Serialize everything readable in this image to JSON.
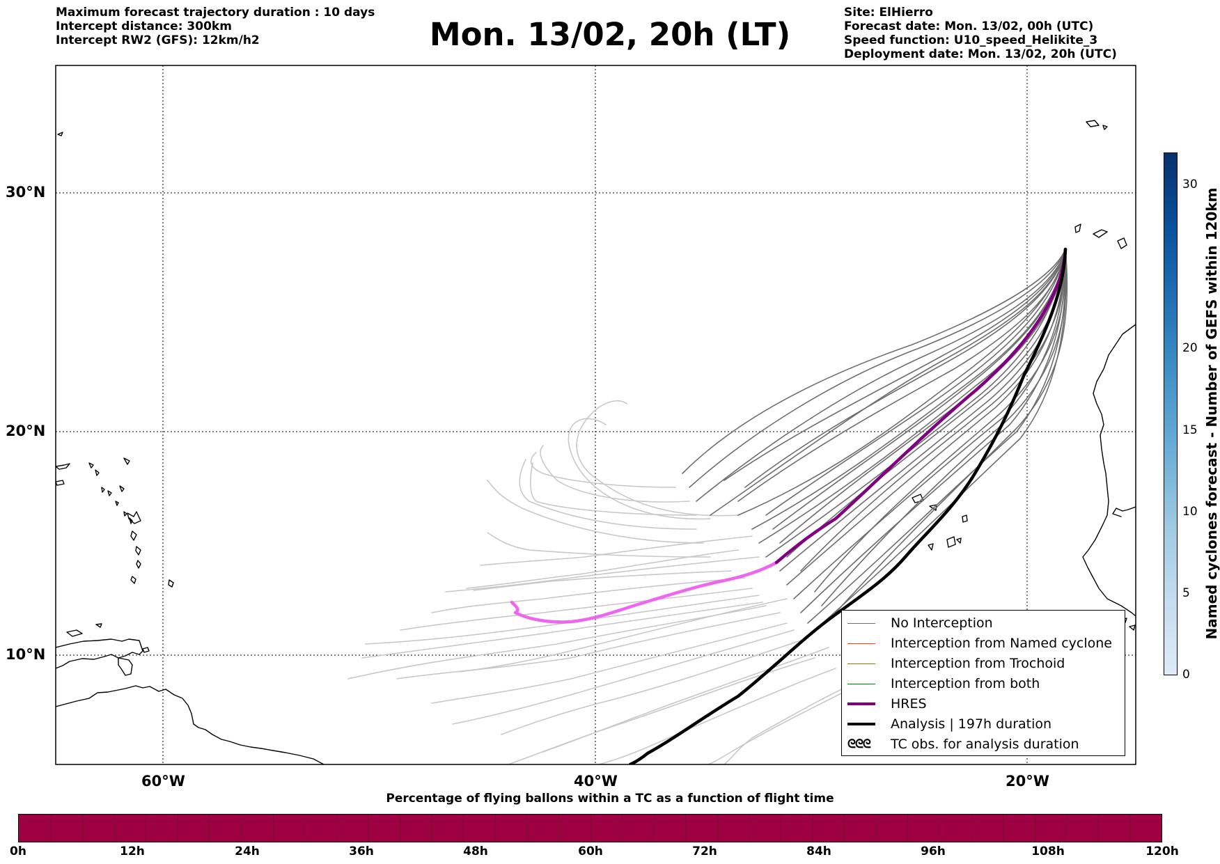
{
  "header_left": {
    "line1": "Maximum forecast trajectory duration : 10 days",
    "line2": "Intercept distance: 300km",
    "line3": "Intercept RW2 (GFS):  12km/h2"
  },
  "title": "Mon. 13/02, 20h (LT)",
  "header_right": {
    "site": "Site: ElHierro",
    "forecast_date": "Forecast date: Mon. 13/02, 00h (UTC)",
    "speed_function": "Speed function: U10_speed_Helikite_3",
    "deployment_date": "Deployment date: Mon. 13/02, 20h (UTC)"
  },
  "map": {
    "lat_labels": [
      "30°N",
      "20°N",
      "10°N"
    ],
    "lon_labels": [
      "60°W",
      "40°W",
      "20°W"
    ],
    "colors": {
      "no_interception": "#6e6e6e",
      "ensemble_faded": "#c8c8c8",
      "named_cyclone": "#ff4500",
      "trochoid": "#808000",
      "both": "#008000",
      "hres": "#800080",
      "hres_faded": "#ee66ee",
      "analysis": "#000000"
    }
  },
  "legend": {
    "items": [
      {
        "label": "No Interception",
        "style": "gray-thin"
      },
      {
        "label": "Interception from Named cyclone",
        "style": "orange-thin"
      },
      {
        "label": "Interception from Trochoid",
        "style": "olive-thin"
      },
      {
        "label": "Interception from both",
        "style": "green-thin"
      },
      {
        "label": "HRES",
        "style": "purple-thick"
      },
      {
        "label": "Analysis | 197h duration",
        "style": "black-thick"
      },
      {
        "label": "TC obs. for analysis duration",
        "style": "cyclone-symbols",
        "symbol": "ᘓᘓᘓ"
      }
    ]
  },
  "colorbar_right": {
    "label": "Named cyclones forecast - Number of GEFS within 120km",
    "ticks": [
      "0",
      "5",
      "10",
      "15",
      "20",
      "30"
    ],
    "colors": [
      "#deebf7",
      "#c6dbef",
      "#9ecae1",
      "#6baed6",
      "#4292c6",
      "#2171b5",
      "#08519c",
      "#08306b"
    ]
  },
  "bottom": {
    "caption": "Percentage of flying ballons within a TC as a function of flight time",
    "bar_color": "#9e0142",
    "ticks": [
      "0h",
      "12h",
      "24h",
      "36h",
      "48h",
      "60h",
      "72h",
      "84h",
      "96h",
      "108h",
      "120h"
    ]
  }
}
